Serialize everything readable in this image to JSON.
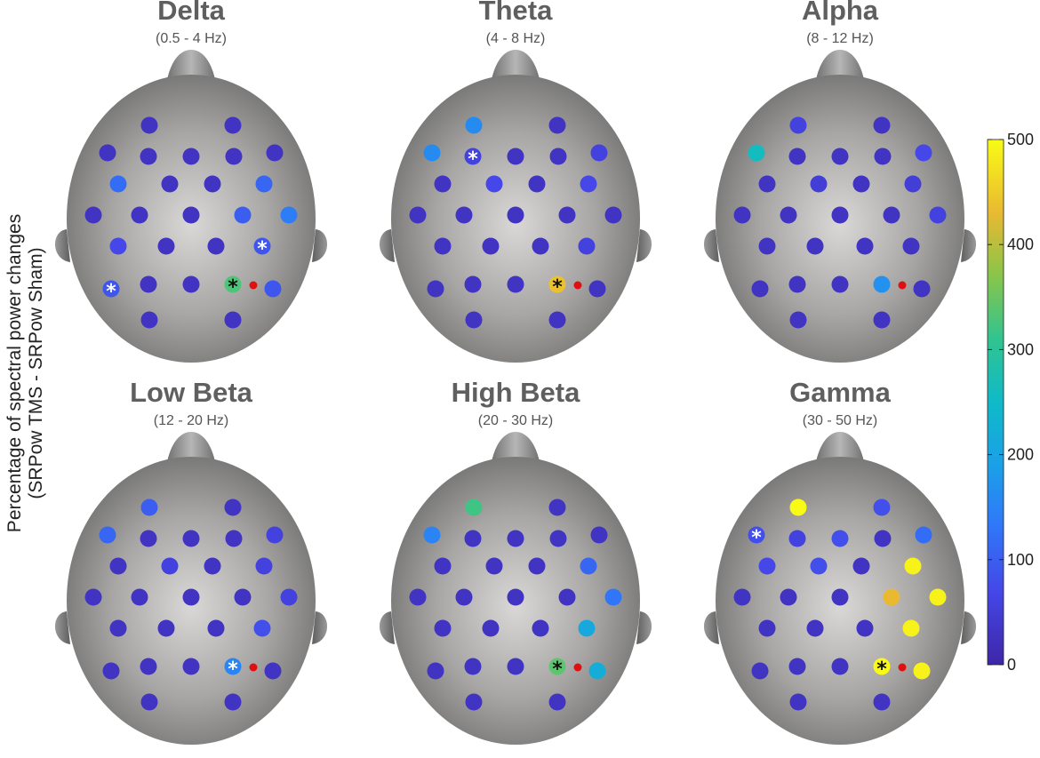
{
  "figure": {
    "ylabel_line1": "Percentage of spectral power changes",
    "ylabel_line2": "(SRPow TMS - SRPow Sham)"
  },
  "colorbar": {
    "min": 0,
    "max": 500,
    "ticks": [
      "0",
      "100",
      "200",
      "300",
      "400",
      "500"
    ]
  },
  "colors": {
    "stim_marker": "#e01010",
    "scalp_center": "#d8d6d4",
    "scalp_edge": "#6e6e6e"
  },
  "panels": [
    {
      "title": "Delta",
      "range": "(0.5 - 4 Hz)",
      "electrodes": [
        {
          "value": 30,
          "sig": false
        },
        {
          "value": 30,
          "sig": false
        },
        {
          "value": 30,
          "sig": false
        },
        {
          "value": 30,
          "sig": false
        },
        {
          "value": 30,
          "sig": false
        },
        {
          "value": 30,
          "sig": false
        },
        {
          "value": 30,
          "sig": false
        },
        {
          "value": 120,
          "sig": false
        },
        {
          "value": 30,
          "sig": false
        },
        {
          "value": 30,
          "sig": false
        },
        {
          "value": 110,
          "sig": false
        },
        {
          "value": 30,
          "sig": false
        },
        {
          "value": 30,
          "sig": false
        },
        {
          "value": 30,
          "sig": false
        },
        {
          "value": 100,
          "sig": false
        },
        {
          "value": 140,
          "sig": false
        },
        {
          "value": 70,
          "sig": false
        },
        {
          "value": 30,
          "sig": false
        },
        {
          "value": 30,
          "sig": false
        },
        {
          "value": 90,
          "sig": true,
          "star": "white"
        },
        {
          "value": 90,
          "sig": true,
          "star": "white"
        },
        {
          "value": 30,
          "sig": false
        },
        {
          "value": 30,
          "sig": false
        },
        {
          "value": 330,
          "sig": true,
          "star": "black"
        },
        {
          "value": 90,
          "sig": false
        },
        {
          "value": 30,
          "sig": false
        },
        {
          "value": 30,
          "sig": false
        }
      ]
    },
    {
      "title": "Theta",
      "range": "(4 - 8 Hz)",
      "electrodes": [
        {
          "value": 160,
          "sig": false
        },
        {
          "value": 30,
          "sig": false
        },
        {
          "value": 160,
          "sig": false
        },
        {
          "value": 60,
          "sig": true,
          "star": "white"
        },
        {
          "value": 30,
          "sig": false
        },
        {
          "value": 30,
          "sig": false
        },
        {
          "value": 60,
          "sig": false
        },
        {
          "value": 30,
          "sig": false
        },
        {
          "value": 70,
          "sig": false
        },
        {
          "value": 30,
          "sig": false
        },
        {
          "value": 70,
          "sig": false
        },
        {
          "value": 30,
          "sig": false
        },
        {
          "value": 30,
          "sig": false
        },
        {
          "value": 30,
          "sig": false
        },
        {
          "value": 30,
          "sig": false
        },
        {
          "value": 30,
          "sig": false
        },
        {
          "value": 30,
          "sig": false
        },
        {
          "value": 30,
          "sig": false
        },
        {
          "value": 30,
          "sig": false
        },
        {
          "value": 60,
          "sig": false
        },
        {
          "value": 30,
          "sig": false
        },
        {
          "value": 30,
          "sig": false
        },
        {
          "value": 30,
          "sig": false
        },
        {
          "value": 440,
          "sig": true,
          "star": "black"
        },
        {
          "value": 30,
          "sig": false
        },
        {
          "value": 30,
          "sig": false
        },
        {
          "value": 30,
          "sig": false
        }
      ]
    },
    {
      "title": "Alpha",
      "range": "(8 - 12 Hz)",
      "electrodes": [
        {
          "value": 60,
          "sig": false
        },
        {
          "value": 30,
          "sig": false
        },
        {
          "value": 260,
          "sig": false
        },
        {
          "value": 30,
          "sig": false
        },
        {
          "value": 30,
          "sig": false
        },
        {
          "value": 30,
          "sig": false
        },
        {
          "value": 70,
          "sig": false
        },
        {
          "value": 30,
          "sig": false
        },
        {
          "value": 50,
          "sig": false
        },
        {
          "value": 30,
          "sig": false
        },
        {
          "value": 50,
          "sig": false
        },
        {
          "value": 30,
          "sig": false
        },
        {
          "value": 30,
          "sig": false
        },
        {
          "value": 30,
          "sig": false
        },
        {
          "value": 30,
          "sig": false
        },
        {
          "value": 60,
          "sig": false
        },
        {
          "value": 30,
          "sig": false
        },
        {
          "value": 30,
          "sig": false
        },
        {
          "value": 30,
          "sig": false
        },
        {
          "value": 30,
          "sig": false
        },
        {
          "value": 30,
          "sig": false
        },
        {
          "value": 30,
          "sig": false
        },
        {
          "value": 30,
          "sig": false
        },
        {
          "value": 170,
          "sig": false
        },
        {
          "value": 30,
          "sig": false
        },
        {
          "value": 30,
          "sig": false
        },
        {
          "value": 30,
          "sig": false
        }
      ]
    },
    {
      "title": "Low Beta",
      "range": "(12 - 20 Hz)",
      "electrodes": [
        {
          "value": 100,
          "sig": false
        },
        {
          "value": 30,
          "sig": false
        },
        {
          "value": 110,
          "sig": false
        },
        {
          "value": 30,
          "sig": false
        },
        {
          "value": 30,
          "sig": false
        },
        {
          "value": 30,
          "sig": false
        },
        {
          "value": 60,
          "sig": false
        },
        {
          "value": 30,
          "sig": false
        },
        {
          "value": 60,
          "sig": false
        },
        {
          "value": 30,
          "sig": false
        },
        {
          "value": 60,
          "sig": false
        },
        {
          "value": 30,
          "sig": false
        },
        {
          "value": 30,
          "sig": false
        },
        {
          "value": 30,
          "sig": false
        },
        {
          "value": 30,
          "sig": false
        },
        {
          "value": 60,
          "sig": false
        },
        {
          "value": 30,
          "sig": false
        },
        {
          "value": 30,
          "sig": false
        },
        {
          "value": 30,
          "sig": false
        },
        {
          "value": 80,
          "sig": false
        },
        {
          "value": 30,
          "sig": false
        },
        {
          "value": 30,
          "sig": false
        },
        {
          "value": 30,
          "sig": false
        },
        {
          "value": 150,
          "sig": true,
          "star": "white"
        },
        {
          "value": 30,
          "sig": false
        },
        {
          "value": 30,
          "sig": false
        },
        {
          "value": 30,
          "sig": false
        }
      ]
    },
    {
      "title": "High Beta",
      "range": "(20 - 30 Hz)",
      "electrodes": [
        {
          "value": 320,
          "sig": false
        },
        {
          "value": 30,
          "sig": false
        },
        {
          "value": 150,
          "sig": false
        },
        {
          "value": 30,
          "sig": false
        },
        {
          "value": 30,
          "sig": false
        },
        {
          "value": 30,
          "sig": false
        },
        {
          "value": 30,
          "sig": false
        },
        {
          "value": 30,
          "sig": false
        },
        {
          "value": 30,
          "sig": false
        },
        {
          "value": 30,
          "sig": false
        },
        {
          "value": 110,
          "sig": false
        },
        {
          "value": 30,
          "sig": false
        },
        {
          "value": 30,
          "sig": false
        },
        {
          "value": 30,
          "sig": false
        },
        {
          "value": 30,
          "sig": false
        },
        {
          "value": 130,
          "sig": false
        },
        {
          "value": 30,
          "sig": false
        },
        {
          "value": 30,
          "sig": false
        },
        {
          "value": 30,
          "sig": false
        },
        {
          "value": 210,
          "sig": false
        },
        {
          "value": 30,
          "sig": false
        },
        {
          "value": 30,
          "sig": false
        },
        {
          "value": 30,
          "sig": false
        },
        {
          "value": 340,
          "sig": true,
          "star": "black"
        },
        {
          "value": 220,
          "sig": false
        },
        {
          "value": 30,
          "sig": false
        },
        {
          "value": 30,
          "sig": false
        }
      ]
    },
    {
      "title": "Gamma",
      "range": "(30 - 50 Hz)",
      "electrodes": [
        {
          "value": 500,
          "sig": false
        },
        {
          "value": 80,
          "sig": false
        },
        {
          "value": 80,
          "sig": true,
          "star": "white"
        },
        {
          "value": 60,
          "sig": false
        },
        {
          "value": 80,
          "sig": false
        },
        {
          "value": 30,
          "sig": false
        },
        {
          "value": 120,
          "sig": false
        },
        {
          "value": 70,
          "sig": false
        },
        {
          "value": 80,
          "sig": false
        },
        {
          "value": 30,
          "sig": false
        },
        {
          "value": 490,
          "sig": false
        },
        {
          "value": 30,
          "sig": false
        },
        {
          "value": 30,
          "sig": false
        },
        {
          "value": 30,
          "sig": false
        },
        {
          "value": 430,
          "sig": false
        },
        {
          "value": 490,
          "sig": false
        },
        {
          "value": 30,
          "sig": false
        },
        {
          "value": 30,
          "sig": false
        },
        {
          "value": 30,
          "sig": false
        },
        {
          "value": 490,
          "sig": false
        },
        {
          "value": 30,
          "sig": false
        },
        {
          "value": 30,
          "sig": false
        },
        {
          "value": 30,
          "sig": false
        },
        {
          "value": 500,
          "sig": true,
          "star": "black"
        },
        {
          "value": 490,
          "sig": false
        },
        {
          "value": 30,
          "sig": false
        },
        {
          "value": 30,
          "sig": false
        }
      ]
    }
  ]
}
